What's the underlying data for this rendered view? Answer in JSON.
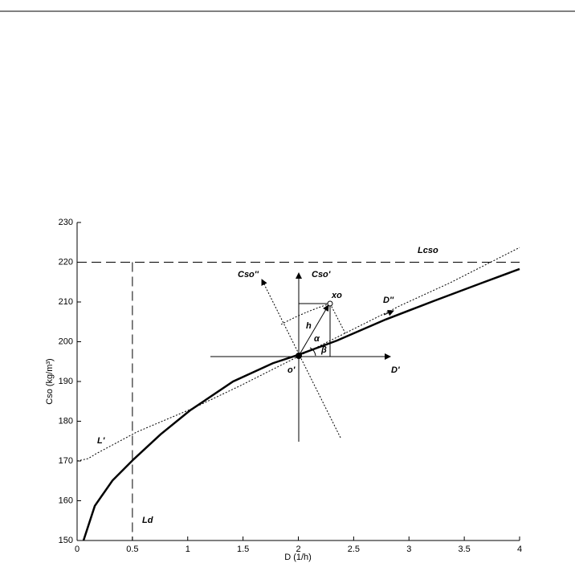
{
  "chart_data": {
    "type": "line",
    "xlabel": "D (1/h)",
    "ylabel": "Cso (kg/m³)",
    "xlim": [
      0,
      4
    ],
    "xticks": [
      0,
      0.5,
      1,
      1.5,
      2,
      2.5,
      3,
      3.5,
      4
    ],
    "ylim": [
      150,
      230
    ],
    "yticks": [
      150,
      160,
      170,
      180,
      190,
      200,
      210,
      220,
      230
    ],
    "grid": false,
    "series": [
      {
        "color": "#000000",
        "style": "solid",
        "x": [
          0.058,
          0.16,
          0.32,
          0.51,
          0.755,
          1.02,
          1.41,
          1.77,
          2.0,
          2.35,
          2.79,
          3.22,
          3.66,
          4.0
        ],
        "values": [
          150,
          158.7,
          165.1,
          170.4,
          176.7,
          182.7,
          190,
          194.6,
          196.7,
          200.3,
          205.6,
          210.2,
          214.8,
          218.3
        ]
      },
      {
        "color": "#000000",
        "style": "dotted",
        "x": [
          0,
          0.1,
          0.17,
          0.54,
          1.05,
          1.48,
          2.0,
          2.42,
          2.93,
          3.37,
          4.0
        ],
        "values": [
          170,
          170.6,
          171.8,
          177.3,
          183.3,
          189,
          196.3,
          202.1,
          209.2,
          214.8,
          223.7
        ]
      }
    ],
    "hlines": [
      220
    ],
    "vlines": [
      0.5
    ],
    "annotations": [
      "Lcso",
      "Ld",
      "L'",
      "Cso''",
      "Cso'",
      "xo",
      "D''",
      "h",
      "α",
      "β",
      "o'",
      "D'"
    ]
  }
}
